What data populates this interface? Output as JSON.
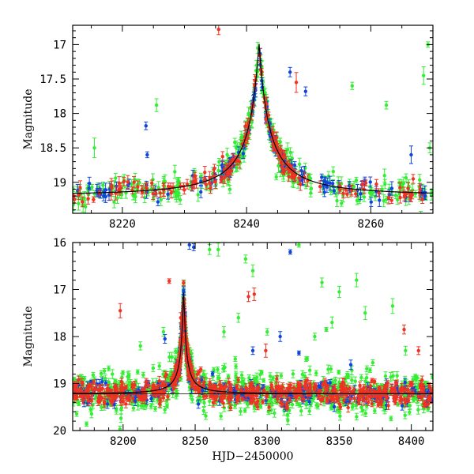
{
  "chart_data": [
    {
      "type": "scatter",
      "id": "top",
      "ylabel": "Magnitude",
      "xlabel": "",
      "xlim": [
        8212,
        8270
      ],
      "ylim": [
        19.45,
        16.72
      ],
      "y_inverted": true,
      "xticks": [
        8220,
        8240,
        8260
      ],
      "yticks": [
        17,
        17.5,
        18,
        18.5,
        19
      ],
      "ytick_labels": [
        "17",
        "17.5",
        "18",
        "18.5",
        "19"
      ],
      "colors": {
        "red": "#ee3322",
        "blue": "#1144dd",
        "green": "#33ee33"
      },
      "model_curve": {
        "baseline": 19.2,
        "peak_x": 8242.0,
        "peak_mag": 16.97,
        "rise_scale": 2.6,
        "decay_scale": 2.6
      },
      "outliers": {
        "red": [
          [
            8235.5,
            16.78
          ],
          [
            8248.0,
            17.55
          ]
        ],
        "blue": [
          [
            8223.8,
            18.18
          ],
          [
            8247.0,
            17.4
          ],
          [
            8249.5,
            17.68
          ],
          [
            8266.5,
            18.6
          ],
          [
            8224.0,
            18.6
          ]
        ],
        "green": [
          [
            8215.5,
            18.5
          ],
          [
            8225.5,
            17.88
          ],
          [
            8257.0,
            17.6
          ],
          [
            8262.5,
            17.88
          ],
          [
            8268.5,
            17.45
          ],
          [
            8269.2,
            17.0
          ],
          [
            8269.5,
            18.5
          ]
        ]
      }
    },
    {
      "type": "scatter",
      "id": "bottom",
      "ylabel": "Magnitude",
      "xlabel": "HJD−2450000",
      "xlim": [
        8165,
        8415
      ],
      "ylim": [
        20,
        16
      ],
      "y_inverted": true,
      "xticks": [
        8200,
        8250,
        8300,
        8350,
        8400
      ],
      "yticks": [
        16,
        17,
        18,
        19,
        20
      ],
      "ytick_labels": [
        "16",
        "17",
        "18",
        "19",
        "20"
      ],
      "reference_line": 19.22,
      "colors": {
        "red": "#ee3322",
        "blue": "#1144dd",
        "green": "#33ee33"
      },
      "model_curve": {
        "baseline": 19.22,
        "peak_x": 8242.0,
        "peak_mag": 16.9,
        "rise_scale": 2.6,
        "decay_scale": 2.6
      },
      "outliers": {
        "red": [
          [
            8198,
            17.45
          ],
          [
            8232,
            16.82
          ],
          [
            8287,
            17.15
          ],
          [
            8291,
            17.1
          ],
          [
            8299,
            18.3
          ],
          [
            8395,
            17.85
          ],
          [
            8405,
            18.3
          ],
          [
            8240,
            17.6
          ]
        ],
        "blue": [
          [
            8246,
            16.05
          ],
          [
            8249,
            16.1
          ],
          [
            8316,
            16.2
          ],
          [
            8309,
            18.0
          ],
          [
            8322,
            18.35
          ],
          [
            8358,
            18.6
          ],
          [
            8229,
            18.05
          ],
          [
            8290,
            18.3
          ]
        ],
        "green": [
          [
            8260,
            16.15
          ],
          [
            8266,
            16.15
          ],
          [
            8285,
            16.35
          ],
          [
            8290,
            16.6
          ],
          [
            8322,
            16.05
          ],
          [
            8338,
            16.85
          ],
          [
            8341,
            17.85
          ],
          [
            8345,
            17.7
          ],
          [
            8350,
            17.05
          ],
          [
            8362,
            16.8
          ],
          [
            8368,
            17.5
          ],
          [
            8387,
            17.35
          ],
          [
            8396,
            18.3
          ],
          [
            8270,
            17.9
          ],
          [
            8280,
            17.6
          ],
          [
            8300,
            17.9
          ],
          [
            8333,
            18.0
          ],
          [
            8228,
            17.9
          ],
          [
            8212,
            18.2
          ]
        ]
      }
    }
  ]
}
